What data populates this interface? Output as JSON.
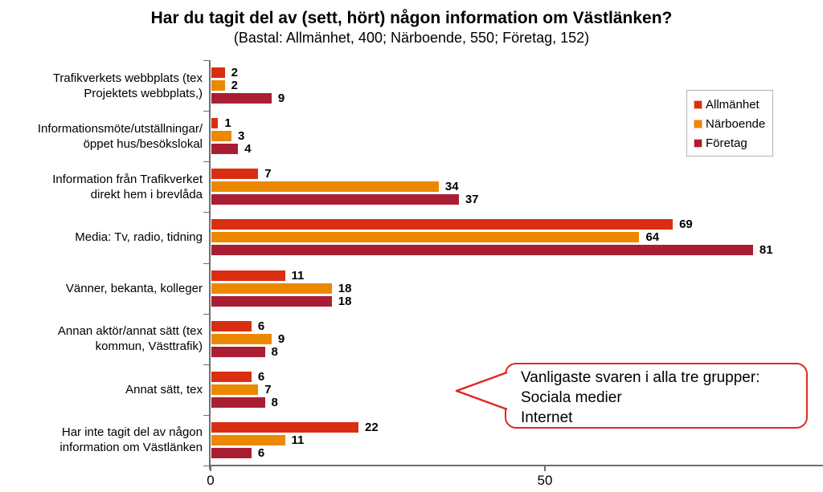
{
  "title": "Har du tagit del av (sett, hört) någon information om Västlänken?",
  "subtitle": "(Bastal: Allmänhet, 400; Närboende, 550; Företag, 152)",
  "chart_data": {
    "type": "bar",
    "orientation": "horizontal",
    "title": "Har du tagit del av (sett, hört) någon information om Västlänken?",
    "subtitle": "(Bastal: Allmänhet, 400; Närboende, 550; Företag, 152)",
    "categories": [
      "Trafikverkets webbplats (tex\nProjektets webbplats,)",
      "Informationsmöte/utställningar/\nöppet hus/besökslokal",
      "Information från Trafikverket\ndirekt hem i brevlåda",
      "Media: Tv, radio, tidning",
      "Vänner, bekanta, kolleger",
      "Annan aktör/annat sätt (tex\nkommun, Västtrafik)",
      "Annat sätt, tex",
      "Har inte tagit del av någon\ninformation om Västlänken"
    ],
    "series": [
      {
        "name": "Allmänhet",
        "color": "#da2e11",
        "values": [
          2,
          1,
          7,
          69,
          11,
          6,
          6,
          22
        ]
      },
      {
        "name": "Närboende",
        "color": "#ec8800",
        "values": [
          2,
          3,
          34,
          64,
          18,
          9,
          7,
          11
        ]
      },
      {
        "name": "Företag",
        "color": "#aa1e33",
        "values": [
          9,
          4,
          37,
          81,
          18,
          8,
          8,
          6
        ]
      }
    ],
    "xlim": [
      0,
      90
    ],
    "x_ticks": [
      0,
      50
    ],
    "grid": false,
    "legend_position": "upper-right",
    "value_labels": true
  },
  "legend": {
    "items": [
      "Allmänhet",
      "Närboende",
      "Företag"
    ]
  },
  "callout": {
    "lines": [
      "Vanligaste svaren i alla tre grupper:",
      "Sociala medier",
      "Internet"
    ]
  },
  "colors": {
    "axis": "#6e6e6e",
    "callout_border": "#e0281e",
    "background": "#ffffff"
  }
}
